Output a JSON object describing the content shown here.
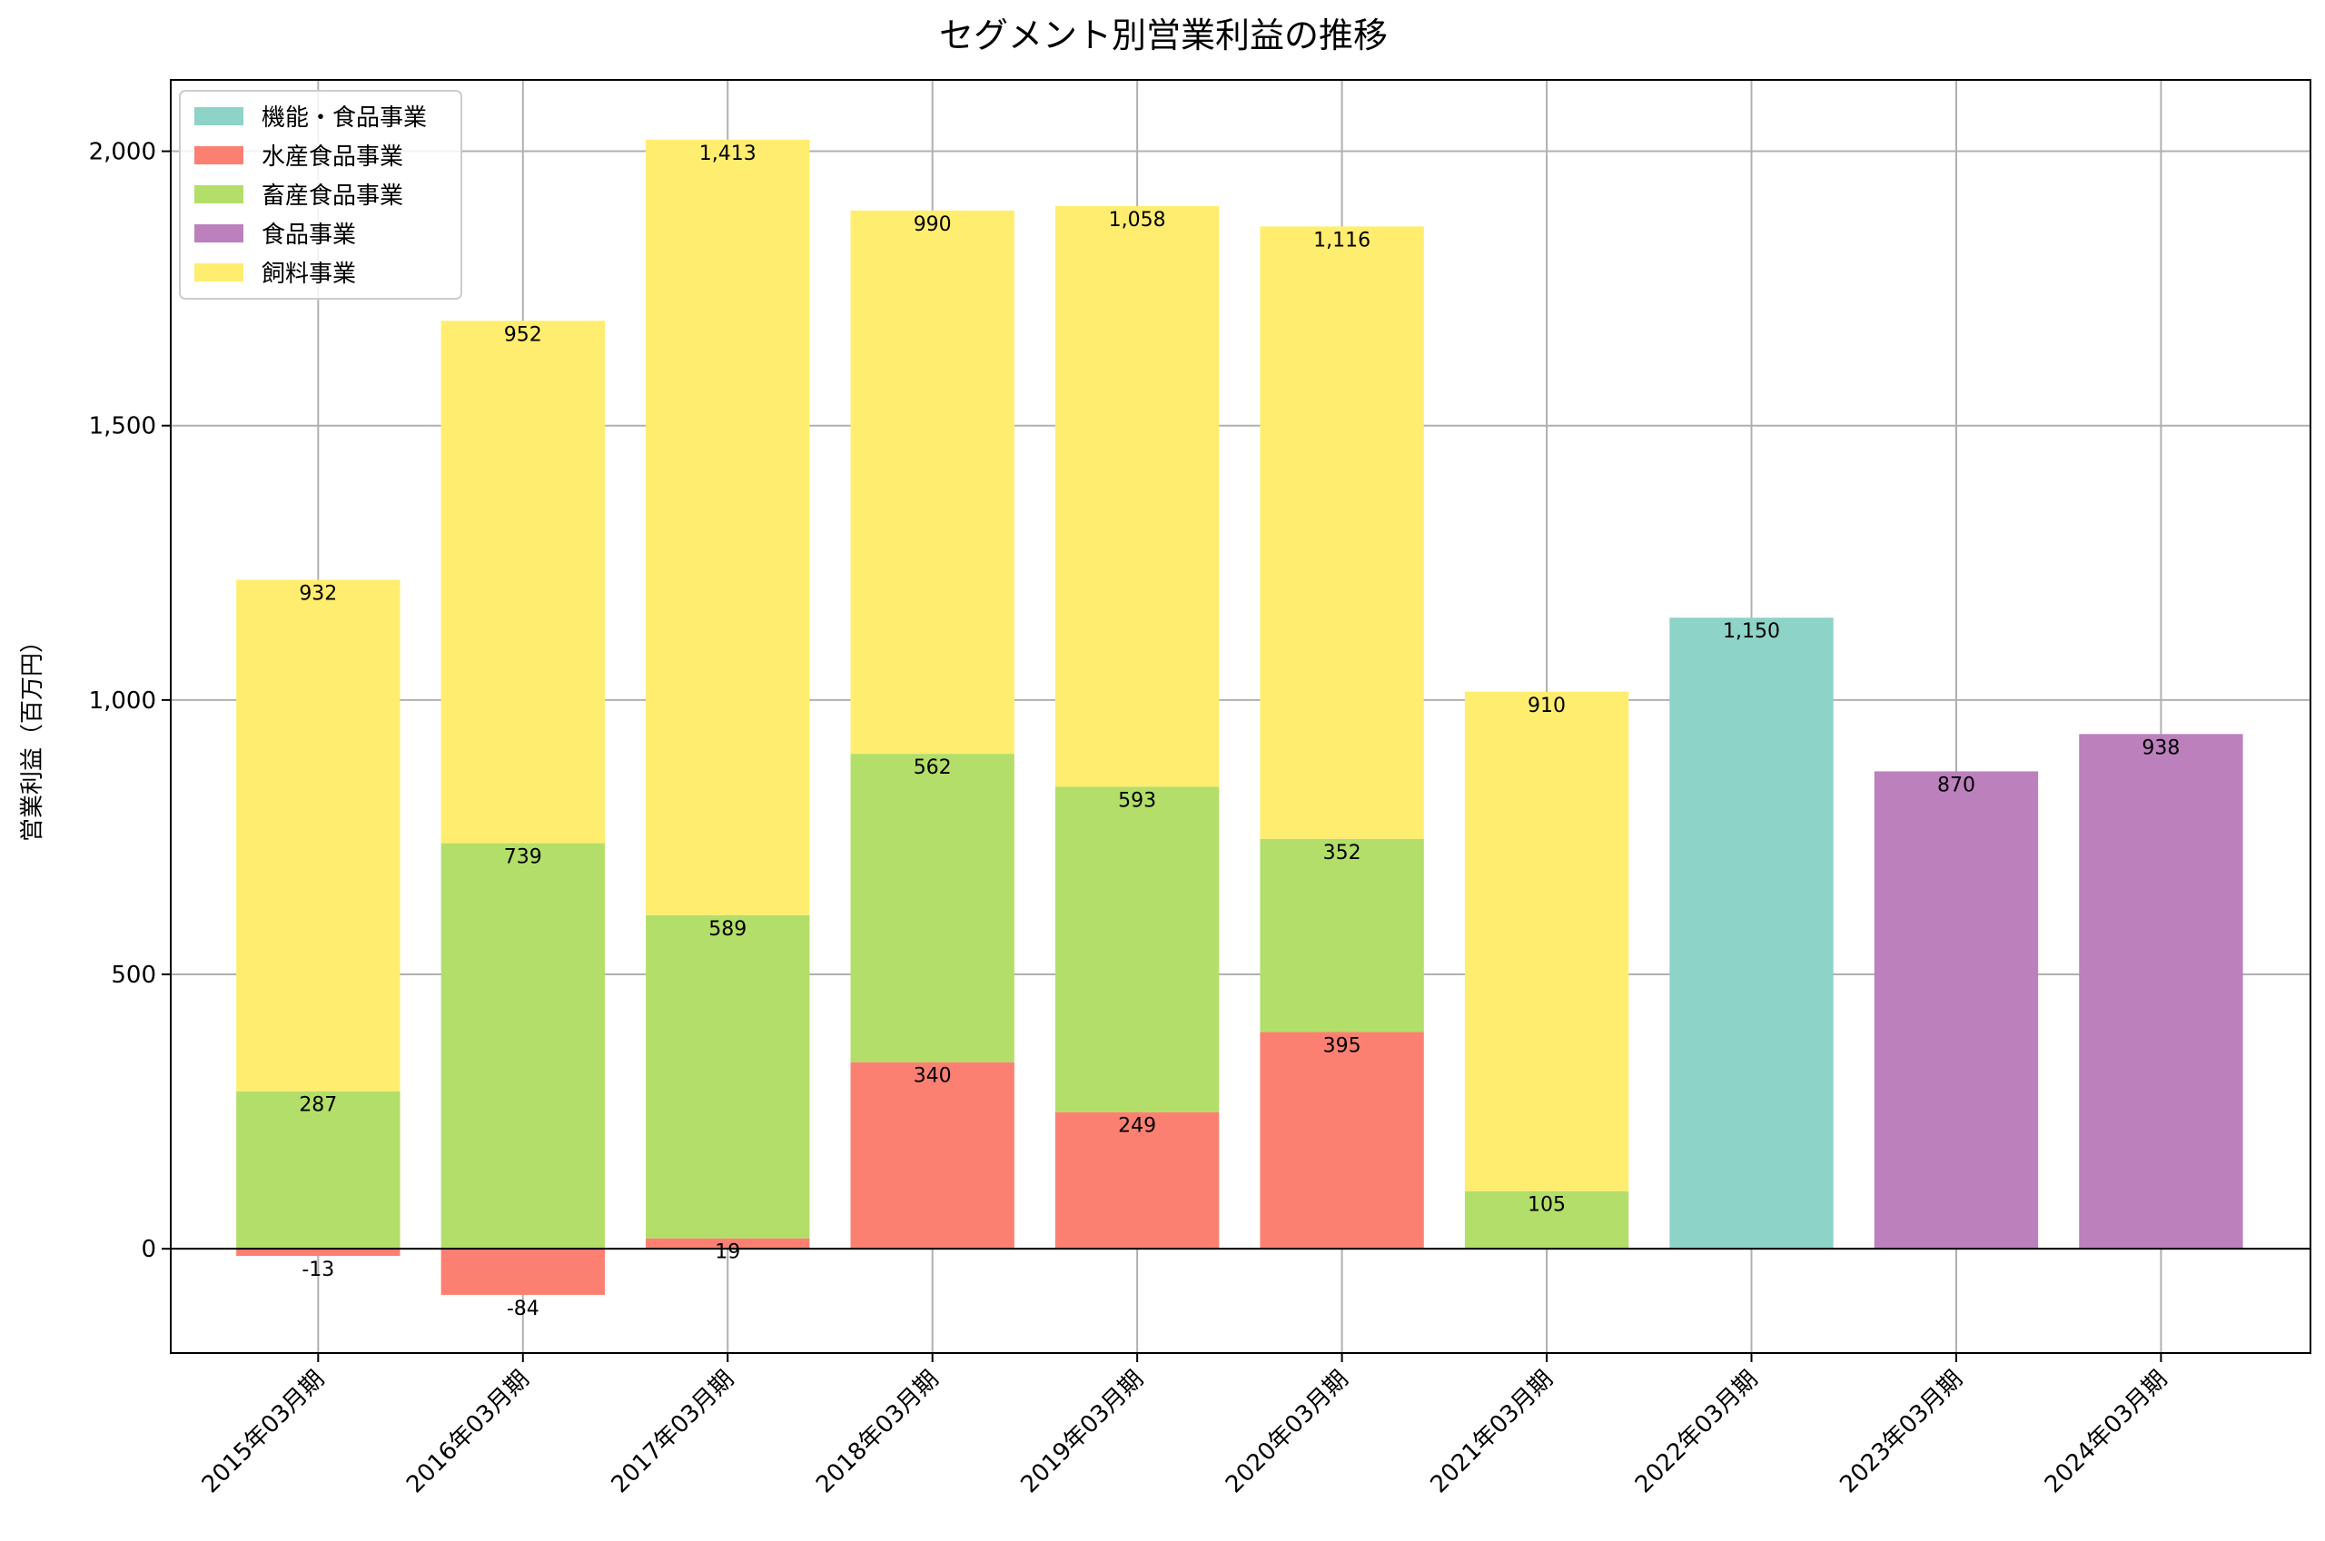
{
  "chart_data": {
    "type": "bar",
    "stacked": true,
    "title": "セグメント別営業利益の推移",
    "xlabel": "",
    "ylabel": "営業利益（百万円）",
    "ylim": [
      -190,
      2130
    ],
    "yticks": [
      0,
      500,
      1000,
      1500,
      2000
    ],
    "ytick_labels": [
      "0",
      "500",
      "1,000",
      "1,500",
      "2,000"
    ],
    "grid": true,
    "legend_position": "top-left",
    "categories": [
      "2015年03月期",
      "2016年03月期",
      "2017年03月期",
      "2018年03月期",
      "2019年03月期",
      "2020年03月期",
      "2021年03月期",
      "2022年03月期",
      "2023年03月期",
      "2024年03月期"
    ],
    "series": [
      {
        "name": "機能・食品事業",
        "color": "#8dd3c7",
        "values": [
          null,
          null,
          null,
          null,
          null,
          null,
          null,
          1150,
          null,
          null
        ],
        "labels": [
          "",
          "",
          "",
          "",
          "",
          "",
          "",
          "1,150",
          "",
          ""
        ]
      },
      {
        "name": "水産食品事業",
        "color": "#fb8072",
        "values": [
          -13,
          -84,
          19,
          340,
          249,
          395,
          null,
          null,
          null,
          null
        ],
        "labels": [
          "-13",
          "-84",
          "19",
          "340",
          "249",
          "395",
          "",
          "",
          "",
          ""
        ]
      },
      {
        "name": "畜産食品事業",
        "color": "#b3de69",
        "values": [
          287,
          739,
          589,
          562,
          593,
          352,
          105,
          null,
          null,
          null
        ],
        "labels": [
          "287",
          "739",
          "589",
          "562",
          "593",
          "352",
          "105",
          "",
          "",
          ""
        ]
      },
      {
        "name": "食品事業",
        "color": "#bc80bd",
        "values": [
          null,
          null,
          null,
          null,
          null,
          null,
          null,
          null,
          870,
          938
        ],
        "labels": [
          "",
          "",
          "",
          "",
          "",
          "",
          "",
          "",
          "870",
          "938"
        ]
      },
      {
        "name": "飼料事業",
        "color": "#ffed6f",
        "values": [
          932,
          952,
          1413,
          990,
          1058,
          1116,
          910,
          null,
          null,
          null
        ],
        "labels": [
          "932",
          "952",
          "1,413",
          "990",
          "1,058",
          "1,116",
          "910",
          "",
          "",
          ""
        ]
      }
    ]
  }
}
